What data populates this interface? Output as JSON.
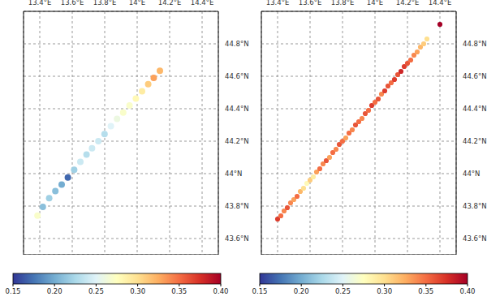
{
  "chart_data": [
    {
      "type": "scatter",
      "marker": "circle",
      "grid": true,
      "xlim": [
        13.3,
        14.5
      ],
      "ylim": [
        43.5,
        45.0
      ],
      "xticks": [
        {
          "value": 13.4,
          "label": "13.4°E"
        },
        {
          "value": 13.6,
          "label": "13.6°E"
        },
        {
          "value": 13.8,
          "label": "13.8°E"
        },
        {
          "value": 14,
          "label": "14°E"
        },
        {
          "value": 14.2,
          "label": "14.2°E"
        },
        {
          "value": 14.4,
          "label": "14.4°E"
        }
      ],
      "yticks": [
        {
          "value": 43.6,
          "label": "43.6°N"
        },
        {
          "value": 43.8,
          "label": "43.8°N"
        },
        {
          "value": 44,
          "label": "44°N"
        },
        {
          "value": 44.2,
          "label": "44.2°N"
        },
        {
          "value": 44.4,
          "label": "44.4°N"
        },
        {
          "value": 44.6,
          "label": "44.6°N"
        },
        {
          "value": 44.8,
          "label": "44.8°N"
        }
      ],
      "x": [
        13.386,
        13.419,
        13.458,
        13.496,
        13.535,
        13.573,
        13.612,
        13.65,
        13.688,
        13.722,
        13.761,
        13.799,
        13.838,
        13.876,
        13.914,
        13.953,
        13.992,
        14.03,
        14.068,
        14.102,
        14.14
      ],
      "y": [
        43.741,
        43.795,
        43.849,
        43.893,
        43.932,
        43.976,
        44.024,
        44.073,
        44.117,
        44.156,
        44.2,
        44.244,
        44.293,
        44.337,
        44.376,
        44.42,
        44.463,
        44.507,
        44.551,
        44.59,
        44.634
      ],
      "z": [
        0.27,
        0.21,
        0.22,
        0.21,
        0.2,
        0.17,
        0.22,
        0.24,
        0.23,
        0.24,
        0.24,
        0.23,
        0.25,
        0.26,
        0.27,
        0.27,
        0.28,
        0.29,
        0.31,
        0.33,
        0.32
      ],
      "colorbar": {
        "range": [
          0.15,
          0.4
        ],
        "ticks": [
          0.15,
          {
            "value": 0.2,
            "label": "0.20"
          },
          0.25,
          {
            "value": 0.3,
            "label": "0.30"
          },
          0.35,
          {
            "value": 0.4,
            "label": "0.40"
          }
        ]
      }
    },
    {
      "type": "scatter",
      "marker": "circle",
      "grid": true,
      "xlim": [
        13.3,
        14.5
      ],
      "ylim": [
        43.5,
        45.0
      ],
      "xticks": [
        {
          "value": 13.4,
          "label": "13.4°E"
        },
        {
          "value": 13.6,
          "label": "13.6°E"
        },
        {
          "value": 13.8,
          "label": "13.8°E"
        },
        {
          "value": 14,
          "label": "14°E"
        },
        {
          "value": 14.2,
          "label": "14.2°E"
        },
        {
          "value": 14.4,
          "label": "14.4°E"
        }
      ],
      "yticks": [
        {
          "value": 43.6,
          "label": "43.6°N"
        },
        {
          "value": 43.8,
          "label": "43.8°N"
        },
        {
          "value": 44,
          "label": "44°N"
        },
        {
          "value": 44.2,
          "label": "44.2°N"
        },
        {
          "value": 44.4,
          "label": "44.4°N"
        },
        {
          "value": 44.6,
          "label": "44.6°N"
        },
        {
          "value": 44.8,
          "label": "44.8°N"
        }
      ],
      "x": [
        13.4,
        13.42,
        13.44,
        13.46,
        13.48,
        13.5,
        13.52,
        13.54,
        13.56,
        13.58,
        13.6,
        13.62,
        13.64,
        13.66,
        13.68,
        13.7,
        13.72,
        13.74,
        13.76,
        13.78,
        13.8,
        13.82,
        13.84,
        13.86,
        13.88,
        13.9,
        13.92,
        13.94,
        13.96,
        13.98,
        14.0,
        14.02,
        14.04,
        14.06,
        14.08,
        14.1,
        14.12,
        14.14,
        14.16,
        14.18,
        14.2,
        14.22,
        14.24,
        14.26,
        14.28,
        14.3,
        14.32,
        14.4
      ],
      "y": [
        43.72,
        43.74,
        43.77,
        43.79,
        43.82,
        43.84,
        43.86,
        43.89,
        43.91,
        43.94,
        43.96,
        43.98,
        44.01,
        44.03,
        44.06,
        44.08,
        44.1,
        44.13,
        44.15,
        44.18,
        44.2,
        44.22,
        44.25,
        44.27,
        44.3,
        44.32,
        44.34,
        44.37,
        44.39,
        44.42,
        44.44,
        44.46,
        44.49,
        44.51,
        44.54,
        44.56,
        44.58,
        44.61,
        44.63,
        44.66,
        44.68,
        44.7,
        44.73,
        44.75,
        44.78,
        44.8,
        44.83,
        44.92
      ],
      "z": [
        0.37,
        0.35,
        0.34,
        0.36,
        0.34,
        0.33,
        0.35,
        0.32,
        0.3,
        0.28,
        0.31,
        0.29,
        0.33,
        0.35,
        0.34,
        0.36,
        0.33,
        0.35,
        0.34,
        0.36,
        0.35,
        0.33,
        0.35,
        0.34,
        0.36,
        0.35,
        0.34,
        0.36,
        0.35,
        0.37,
        0.35,
        0.36,
        0.34,
        0.37,
        0.36,
        0.35,
        0.37,
        0.36,
        0.38,
        0.37,
        0.36,
        0.35,
        0.34,
        0.33,
        0.32,
        0.31,
        0.3,
        0.4
      ],
      "colorbar": {
        "range": [
          0.15,
          0.4
        ],
        "ticks": [
          0.15,
          {
            "value": 0.2,
            "label": "0.20"
          },
          0.25,
          {
            "value": 0.3,
            "label": "0.30"
          },
          0.35,
          {
            "value": 0.4,
            "label": "0.40"
          }
        ]
      }
    }
  ]
}
